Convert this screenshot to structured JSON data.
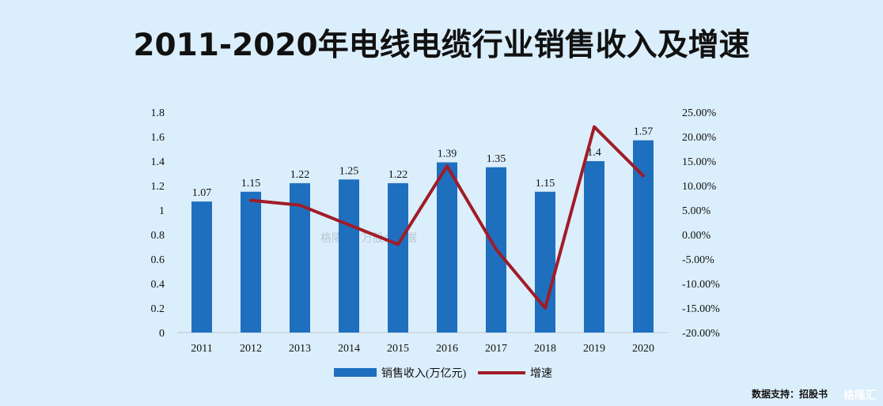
{
  "title": "2011-2020年电线电缆行业销售收入及增速",
  "footer": {
    "source": "数据支持：招股书",
    "logo": "格隆汇"
  },
  "watermark": "格隆汇 | 万股大数据",
  "chart_data": {
    "type": "bar+line",
    "categories": [
      "2011",
      "2012",
      "2013",
      "2014",
      "2015",
      "2016",
      "2017",
      "2018",
      "2019",
      "2020"
    ],
    "series": [
      {
        "name": "销售收入(万亿元)",
        "type": "bar",
        "axis": "left",
        "values": [
          1.07,
          1.15,
          1.22,
          1.25,
          1.22,
          1.39,
          1.35,
          1.15,
          1.4,
          1.57
        ],
        "value_labels": [
          "1.07",
          "1.15",
          "1.22",
          "1.25",
          "1.22",
          "1.39",
          "1.35",
          "1.15",
          "1.4",
          "1.57"
        ],
        "color": "#1f6fbf"
      },
      {
        "name": "增速",
        "type": "line",
        "axis": "right",
        "values": [
          null,
          7.0,
          6.0,
          2.0,
          -2.0,
          14.0,
          -3.0,
          -15.0,
          22.0,
          12.0
        ],
        "color": "#a01c28"
      }
    ],
    "y_left": {
      "range": [
        0,
        1.8
      ],
      "ticks": [
        "0",
        "0.2",
        "0.4",
        "0.6",
        "0.8",
        "1",
        "1.2",
        "1.4",
        "1.6",
        "1.8"
      ]
    },
    "y_right": {
      "range": [
        -20,
        25
      ],
      "ticks": [
        "-20.00%",
        "-15.00%",
        "-10.00%",
        "-5.00%",
        "0.00%",
        "5.00%",
        "10.00%",
        "15.00%",
        "20.00%",
        "25.00%"
      ]
    },
    "legend_position": "bottom",
    "grid": false
  }
}
